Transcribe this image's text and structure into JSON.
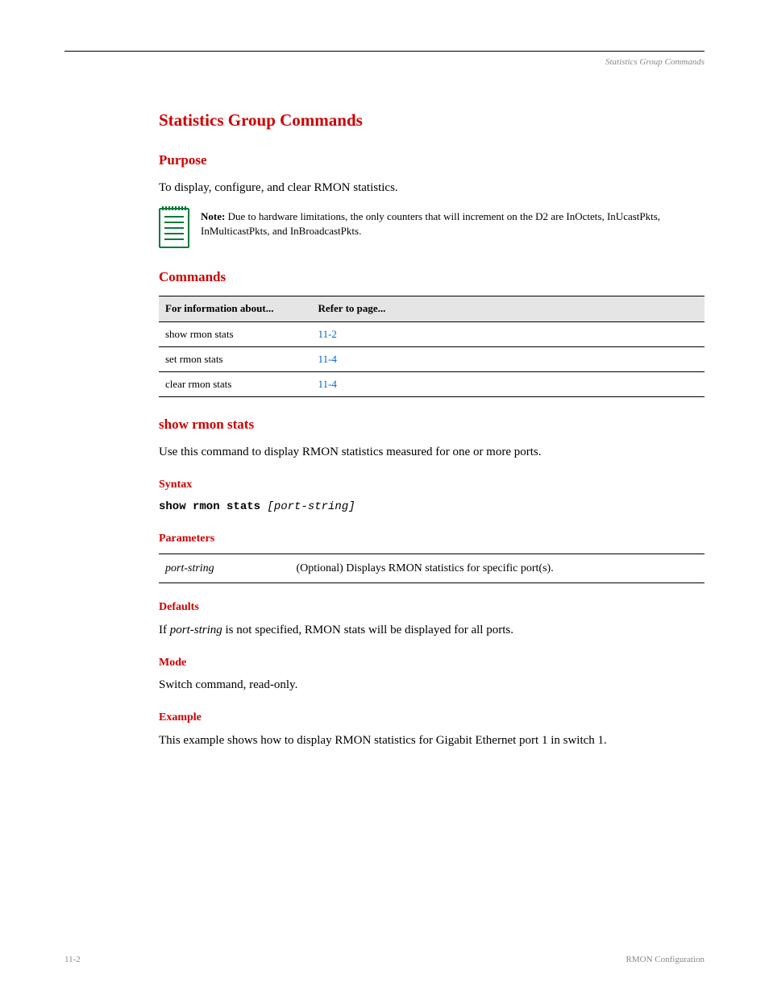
{
  "header": {
    "running_title": "Statistics Group Commands"
  },
  "section": {
    "title": "Statistics Group Commands",
    "purpose_heading": "Purpose",
    "purpose_text": "To display, configure, and clear RMON statistics.",
    "note_label": "Note:",
    "note_text": " Due to hardware limitations, the only counters that will increment on the D2 are InOctets, InUcastPkts, InMulticastPkts, and InBroadcastPkts.",
    "commands_heading": "Commands",
    "table": {
      "col1": "For information about...",
      "col2": "Refer to page...",
      "rows": [
        {
          "cmd": "show rmon stats",
          "page": "11-2"
        },
        {
          "cmd": "set rmon stats",
          "page": "11-4"
        },
        {
          "cmd": "clear rmon stats",
          "page": "11-4"
        }
      ]
    }
  },
  "command": {
    "name": "show rmon stats",
    "desc": "Use this command to display RMON statistics measured for one or more ports.",
    "syntax_heading": "Syntax",
    "syntax_cmd": "show rmon stats ",
    "syntax_opt": "[port-string]",
    "params_heading": "Parameters",
    "param_name": "port-string",
    "param_desc": "(Optional) Displays RMON statistics for specific port(s).",
    "defaults_heading": "Defaults",
    "defaults_text_pre": "If ",
    "defaults_text_em": "port-string",
    "defaults_text_post": " is not specified, RMON stats will be displayed for all ports.",
    "mode_heading": "Mode",
    "mode_text": "Switch command, read-only.",
    "example_heading": "Example",
    "example_text": "This example shows how to display RMON statistics for Gigabit Ethernet port 1 in switch 1."
  },
  "footer": {
    "left": "11-2",
    "right": "RMON Configuration"
  }
}
